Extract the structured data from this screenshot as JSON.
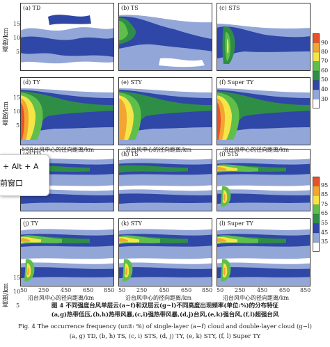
{
  "colorbar_top": {
    "ticks": [
      "90",
      "80",
      "70",
      "60",
      "50",
      "40",
      "30"
    ],
    "colors": [
      "#e8522a",
      "#f2a531",
      "#f6e546",
      "#5fbf4a",
      "#2f8e45",
      "#2f47a6",
      "#93a6d8",
      "#ffffff"
    ]
  },
  "colorbar_bottom": {
    "ticks": [
      "95",
      "85",
      "75",
      "65",
      "55",
      "45",
      "35"
    ],
    "colors": [
      "#e8522a",
      "#f2a531",
      "#f6e546",
      "#5fbf4a",
      "#2f8e45",
      "#2f47a6",
      "#93a6d8",
      "#ffffff"
    ]
  },
  "panels": [
    {
      "id": "a",
      "label": "(a) TD"
    },
    {
      "id": "b",
      "label": "(b) TS"
    },
    {
      "id": "c",
      "label": "(c) STS"
    },
    {
      "id": "d",
      "label": "(d) TY"
    },
    {
      "id": "e",
      "label": "(e) STY"
    },
    {
      "id": "f",
      "label": "(f) Super TY"
    },
    {
      "id": "g",
      "label": "(g) TD"
    },
    {
      "id": "h",
      "label": "(h) TS"
    },
    {
      "id": "i",
      "label": "(i) STS"
    },
    {
      "id": "j",
      "label": "(j) TY"
    },
    {
      "id": "k",
      "label": "(k) STY"
    },
    {
      "id": "l",
      "label": "(l) Super TY"
    }
  ],
  "axes": {
    "ylabel": "高度/km",
    "yticks_top": [
      "15",
      "10",
      "5"
    ],
    "xticks": [
      "50",
      "250",
      "450",
      "650",
      "850"
    ],
    "xlabel": "沿台风中心的径向距离/km"
  },
  "caption": {
    "cn_line1": "图 4   不同强度台风单层云(a~f)和双层云(g~l)不同高度出现频率(单位:%)的分布特征",
    "cn_line2": "(a,g)热带低压,(b,h)热带风暴,(c,i)强热带风暴,(d,j)台风,(e,k)强台风,(f,l)超强台风",
    "en_line1": "Fig. 4   The occurrence frequency (unit: %) of single-layer (a−f) cloud and double-layer cloud (g−l)",
    "en_line2": "(a, g) TD, (b, h) TS, (c, i) STS, (d, j) TY, (e, k) STY, (f, l) Super TY"
  },
  "popup": {
    "shortcut": "+ Alt + A",
    "action": "前窗口"
  }
}
